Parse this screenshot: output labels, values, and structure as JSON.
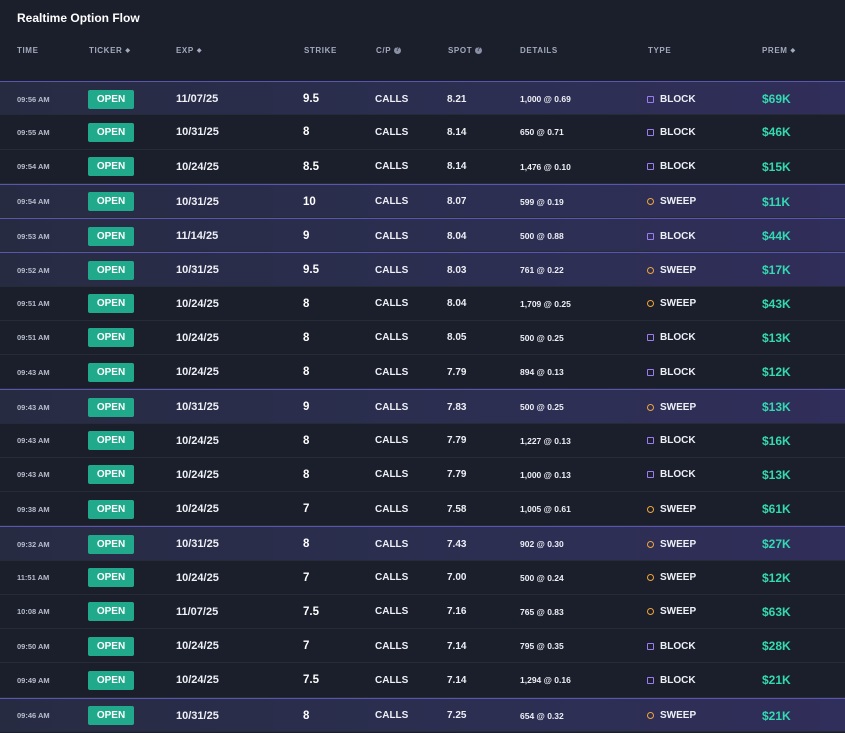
{
  "title": "Realtime Option Flow",
  "columns": {
    "time": "TIME",
    "ticker": "TICKER",
    "exp": "EXP",
    "strike": "STRIKE",
    "cp": "C/P",
    "spot": "SPOT",
    "details": "DETAILS",
    "type": "TYPE",
    "prem": "PREM"
  },
  "icons": {
    "sort": "sort-icon",
    "help": "question-icon",
    "block": "square-icon",
    "sweep": "circle-icon"
  },
  "colors": {
    "open_badge": "#21a98c",
    "premium": "#33d9b0",
    "block": "#9b7cf2",
    "sweep": "#f0a53a",
    "highlight_border": "#5a55b0"
  },
  "rows": [
    {
      "time": "09:56 AM",
      "ticker": "OPEN",
      "exp": "11/07/25",
      "strike": "9.5",
      "cp": "CALLS",
      "spot": "8.21",
      "details": "1,000 @ 0.69",
      "type": "BLOCK",
      "prem": "$69K",
      "highlight": true
    },
    {
      "time": "09:55 AM",
      "ticker": "OPEN",
      "exp": "10/31/25",
      "strike": "8",
      "cp": "CALLS",
      "spot": "8.14",
      "details": "650 @ 0.71",
      "type": "BLOCK",
      "prem": "$46K",
      "highlight": false
    },
    {
      "time": "09:54 AM",
      "ticker": "OPEN",
      "exp": "10/24/25",
      "strike": "8.5",
      "cp": "CALLS",
      "spot": "8.14",
      "details": "1,476 @ 0.10",
      "type": "BLOCK",
      "prem": "$15K",
      "highlight": false
    },
    {
      "time": "09:54 AM",
      "ticker": "OPEN",
      "exp": "10/31/25",
      "strike": "10",
      "cp": "CALLS",
      "spot": "8.07",
      "details": "599 @ 0.19",
      "type": "SWEEP",
      "prem": "$11K",
      "highlight": true
    },
    {
      "time": "09:53 AM",
      "ticker": "OPEN",
      "exp": "11/14/25",
      "strike": "9",
      "cp": "CALLS",
      "spot": "8.04",
      "details": "500 @ 0.88",
      "type": "BLOCK",
      "prem": "$44K",
      "highlight": true
    },
    {
      "time": "09:52 AM",
      "ticker": "OPEN",
      "exp": "10/31/25",
      "strike": "9.5",
      "cp": "CALLS",
      "spot": "8.03",
      "details": "761 @ 0.22",
      "type": "SWEEP",
      "prem": "$17K",
      "highlight": true
    },
    {
      "time": "09:51 AM",
      "ticker": "OPEN",
      "exp": "10/24/25",
      "strike": "8",
      "cp": "CALLS",
      "spot": "8.04",
      "details": "1,709 @ 0.25",
      "type": "SWEEP",
      "prem": "$43K",
      "highlight": false
    },
    {
      "time": "09:51 AM",
      "ticker": "OPEN",
      "exp": "10/24/25",
      "strike": "8",
      "cp": "CALLS",
      "spot": "8.05",
      "details": "500 @ 0.25",
      "type": "BLOCK",
      "prem": "$13K",
      "highlight": false
    },
    {
      "time": "09:43 AM",
      "ticker": "OPEN",
      "exp": "10/24/25",
      "strike": "8",
      "cp": "CALLS",
      "spot": "7.79",
      "details": "894 @ 0.13",
      "type": "BLOCK",
      "prem": "$12K",
      "highlight": false
    },
    {
      "time": "09:43 AM",
      "ticker": "OPEN",
      "exp": "10/31/25",
      "strike": "9",
      "cp": "CALLS",
      "spot": "7.83",
      "details": "500 @ 0.25",
      "type": "SWEEP",
      "prem": "$13K",
      "highlight": true
    },
    {
      "time": "09:43 AM",
      "ticker": "OPEN",
      "exp": "10/24/25",
      "strike": "8",
      "cp": "CALLS",
      "spot": "7.79",
      "details": "1,227 @ 0.13",
      "type": "BLOCK",
      "prem": "$16K",
      "highlight": false
    },
    {
      "time": "09:43 AM",
      "ticker": "OPEN",
      "exp": "10/24/25",
      "strike": "8",
      "cp": "CALLS",
      "spot": "7.79",
      "details": "1,000 @ 0.13",
      "type": "BLOCK",
      "prem": "$13K",
      "highlight": false
    },
    {
      "time": "09:38 AM",
      "ticker": "OPEN",
      "exp": "10/24/25",
      "strike": "7",
      "cp": "CALLS",
      "spot": "7.58",
      "details": "1,005 @ 0.61",
      "type": "SWEEP",
      "prem": "$61K",
      "highlight": false
    },
    {
      "time": "09:32 AM",
      "ticker": "OPEN",
      "exp": "10/31/25",
      "strike": "8",
      "cp": "CALLS",
      "spot": "7.43",
      "details": "902 @ 0.30",
      "type": "SWEEP",
      "prem": "$27K",
      "highlight": true
    },
    {
      "time": "11:51 AM",
      "ticker": "OPEN",
      "exp": "10/24/25",
      "strike": "7",
      "cp": "CALLS",
      "spot": "7.00",
      "details": "500 @ 0.24",
      "type": "SWEEP",
      "prem": "$12K",
      "highlight": false
    },
    {
      "time": "10:08 AM",
      "ticker": "OPEN",
      "exp": "11/07/25",
      "strike": "7.5",
      "cp": "CALLS",
      "spot": "7.16",
      "details": "765 @ 0.83",
      "type": "SWEEP",
      "prem": "$63K",
      "highlight": false
    },
    {
      "time": "09:50 AM",
      "ticker": "OPEN",
      "exp": "10/24/25",
      "strike": "7",
      "cp": "CALLS",
      "spot": "7.14",
      "details": "795 @ 0.35",
      "type": "BLOCK",
      "prem": "$28K",
      "highlight": false
    },
    {
      "time": "09:49 AM",
      "ticker": "OPEN",
      "exp": "10/24/25",
      "strike": "7.5",
      "cp": "CALLS",
      "spot": "7.14",
      "details": "1,294 @ 0.16",
      "type": "BLOCK",
      "prem": "$21K",
      "highlight": false
    },
    {
      "time": "09:46 AM",
      "ticker": "OPEN",
      "exp": "10/31/25",
      "strike": "8",
      "cp": "CALLS",
      "spot": "7.25",
      "details": "654 @ 0.32",
      "type": "SWEEP",
      "prem": "$21K",
      "highlight": true
    }
  ]
}
